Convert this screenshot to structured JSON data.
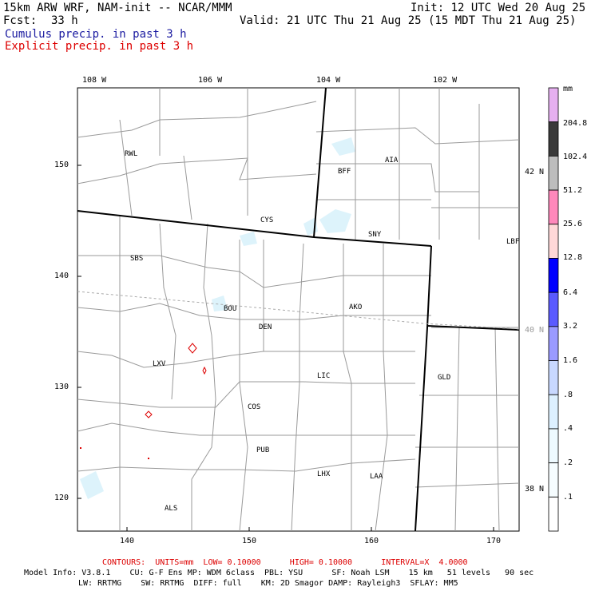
{
  "header": {
    "title": "15km ARW WRF, NAM-init -- NCAR/MMM",
    "init": "Init: 12 UTC Wed 20 Aug 25",
    "fcst_label": "Fcst:",
    "fcst_value": "33 h",
    "valid": "Valid: 21 UTC Thu 21 Aug 25 (15 MDT Thu 21 Aug 25)",
    "cumulus": "Cumulus precip. in past 3 h",
    "explicit": "Explicit precip. in past 3 h"
  },
  "map": {
    "lon_labels": [
      "108 W",
      "106 W",
      "104 W",
      "102 W"
    ],
    "lat_labels": [
      "42 N",
      "40 N",
      "38 N"
    ],
    "y_ticks": [
      "150",
      "140",
      "130",
      "120"
    ],
    "x_ticks": [
      "140",
      "150",
      "160",
      "170"
    ],
    "stations": [
      "RWL",
      "CYS",
      "BFF",
      "AIA",
      "SNY",
      "LBF",
      "SBS",
      "BOU",
      "DEN",
      "AKO",
      "LXV",
      "LIC",
      "GLD",
      "COS",
      "PUB",
      "LHX",
      "LAA",
      "ALS"
    ]
  },
  "colorbar": {
    "unit": "mm",
    "levels": [
      "204.8",
      "102.4",
      "51.2",
      "25.6",
      "12.8",
      "6.4",
      "3.2",
      "1.6",
      ".8",
      ".4",
      ".2",
      ".1"
    ],
    "colors": [
      "#e6b0f0",
      "#3a3a3a",
      "#bdbdbd",
      "#ff88bb",
      "#ffd8d8",
      "#0000ff",
      "#5a5aff",
      "#9a9aff",
      "#c8d8ff",
      "#ddf0ff",
      "#eefaff",
      "#f6fdff",
      "#ffffff"
    ]
  },
  "footer": {
    "contours": "CONTOURS:  UNITS=mm  LOW= 0.10000      HIGH= 0.10000      INTERVAL=X  4.0000",
    "model1": "Model Info: V3.8.1    CU: G-F Ens MP: WDM 6class  PBL: YSU      SF: Noah LSM    15 km   51 levels   90 sec",
    "model2": "LW: RRTMG    SW: RRTMG  DIFF: full    KM: 2D Smagor DAMP: Rayleigh3  SFLAY: MM5"
  }
}
